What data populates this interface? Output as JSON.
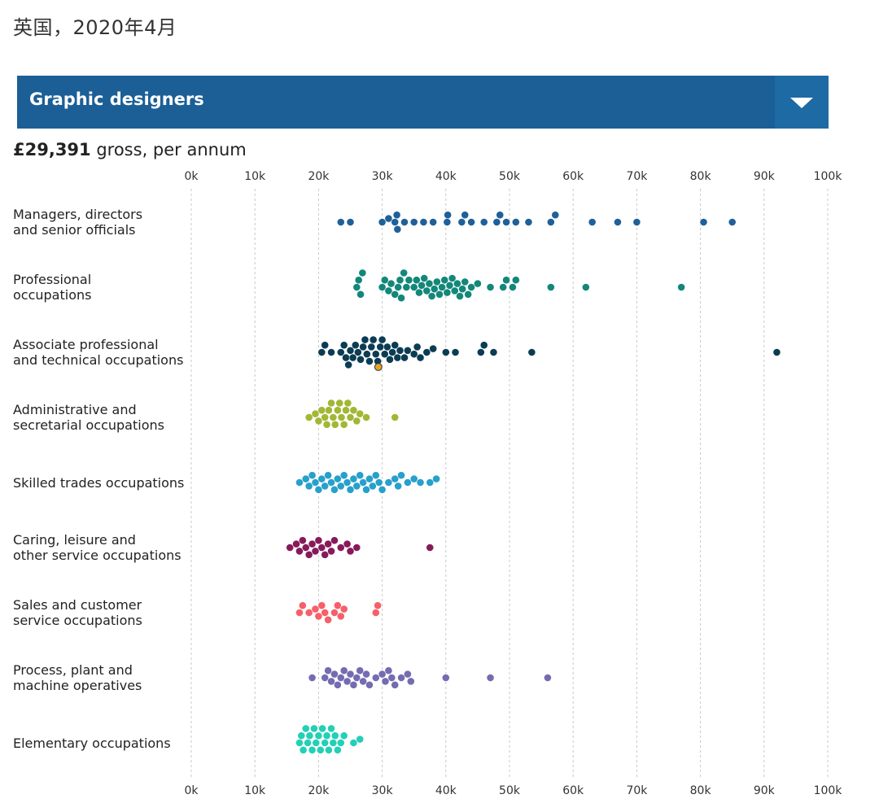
{
  "header": {
    "date_title": "英国，2020年4月"
  },
  "selector": {
    "label": "Graphic designers",
    "icon": "chevron-down-icon"
  },
  "salary": {
    "value": "£29,391",
    "suffix": " gross, per annum"
  },
  "chart_data": {
    "type": "scatter",
    "subtype": "beeswarm",
    "xlim": [
      0,
      100000
    ],
    "x_ticks": [
      0,
      10000,
      20000,
      30000,
      40000,
      50000,
      60000,
      70000,
      80000,
      90000,
      100000
    ],
    "x_tick_labels": [
      "0k",
      "10k",
      "20k",
      "30k",
      "40k",
      "50k",
      "60k",
      "70k",
      "80k",
      "90k",
      "100k"
    ],
    "grid": true,
    "highlight": {
      "value": 29391,
      "color": "#f0a01e"
    },
    "series": [
      {
        "lines": [
          "Managers, directors",
          "and senior officials"
        ],
        "color": "#1f6099",
        "values": [
          23500,
          25000,
          30000,
          31000,
          32000,
          32300,
          32400,
          33500,
          35000,
          36500,
          38000,
          40200,
          40300,
          42500,
          43000,
          44000,
          46000,
          48000,
          48500,
          49500,
          51000,
          53000,
          56500,
          57200,
          63000,
          67000,
          70000,
          80500,
          85000
        ]
      },
      {
        "lines": [
          "Professional",
          "occupations"
        ],
        "color": "#12877a",
        "values": [
          26000,
          26300,
          26600,
          26900,
          30000,
          30400,
          31000,
          31400,
          32000,
          32500,
          32800,
          33000,
          33400,
          33800,
          34200,
          35000,
          35400,
          35800,
          36200,
          36600,
          37000,
          37400,
          37800,
          38200,
          38600,
          39000,
          39400,
          39800,
          40200,
          40600,
          41000,
          41400,
          41800,
          42200,
          42600,
          43000,
          43500,
          44000,
          45000,
          47000,
          49000,
          49500,
          50500,
          51000,
          56500,
          62000,
          77000
        ]
      },
      {
        "lines": [
          "Associate professional",
          "and technical occupations"
        ],
        "color": "#0c3c54",
        "values": [
          20500,
          21000,
          22000,
          23500,
          24000,
          24300,
          24700,
          25000,
          25400,
          25800,
          26200,
          26600,
          27000,
          27300,
          27600,
          28000,
          28300,
          28600,
          29000,
          29300,
          29700,
          30000,
          30400,
          30800,
          31200,
          31600,
          32000,
          32400,
          32800,
          33500,
          34000,
          35000,
          35500,
          36000,
          37000,
          38000,
          40000,
          41500,
          45500,
          46000,
          47500,
          53500,
          92000
        ]
      },
      {
        "lines": [
          "Administrative and",
          "secretarial occupations"
        ],
        "color": "#a2b735",
        "values": [
          18500,
          19500,
          20000,
          20500,
          21000,
          21300,
          21600,
          22000,
          22300,
          22600,
          23000,
          23300,
          23600,
          24000,
          24300,
          24600,
          25000,
          25500,
          26000,
          26500,
          27500,
          32000
        ]
      },
      {
        "lines": [
          "Skilled trades occupations"
        ],
        "color": "#27a0cc",
        "values": [
          17000,
          18000,
          18500,
          19000,
          19500,
          20000,
          20500,
          21000,
          21500,
          22000,
          22500,
          23000,
          23500,
          24000,
          24500,
          25000,
          25500,
          26000,
          26500,
          27000,
          27500,
          28000,
          28500,
          29000,
          29500,
          30000,
          31000,
          32000,
          32500,
          33000,
          34000,
          35000,
          36000,
          37500,
          38500
        ]
      },
      {
        "lines": [
          "Caring, leisure and",
          "other service occupations"
        ],
        "color": "#871a5b",
        "values": [
          15500,
          16500,
          17000,
          17500,
          18000,
          18500,
          19000,
          19500,
          20000,
          20500,
          21000,
          21500,
          22000,
          22500,
          23500,
          24500,
          25000,
          26000,
          37500
        ]
      },
      {
        "lines": [
          "Sales and customer",
          "service occupations"
        ],
        "color": "#f66068",
        "values": [
          17000,
          17500,
          18500,
          19500,
          20000,
          20500,
          21000,
          21500,
          22500,
          23000,
          23500,
          24000,
          29000,
          29300
        ]
      },
      {
        "lines": [
          "Process, plant and",
          "machine operatives"
        ],
        "color": "#746cb1",
        "values": [
          19000,
          21000,
          21500,
          22000,
          22500,
          23000,
          23500,
          24000,
          24500,
          25000,
          25500,
          26000,
          26500,
          27000,
          27500,
          28000,
          29000,
          30000,
          30500,
          31000,
          31500,
          32000,
          33000,
          34000,
          34500,
          40000,
          47000,
          56000
        ]
      },
      {
        "lines": [
          "Elementary occupations"
        ],
        "color": "#22d0b6",
        "values": [
          17000,
          17300,
          17600,
          18000,
          18300,
          18600,
          19000,
          19300,
          19600,
          20000,
          20300,
          20600,
          21000,
          21300,
          21600,
          22000,
          22300,
          22600,
          23000,
          23500,
          24000,
          25500,
          26500
        ]
      }
    ]
  }
}
